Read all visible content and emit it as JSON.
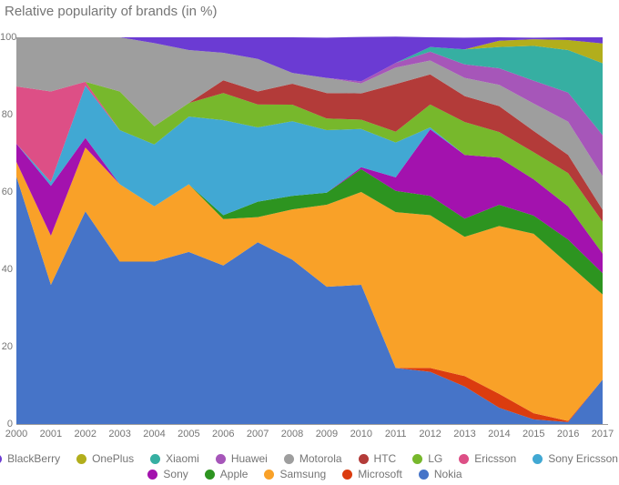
{
  "title": "Relative popularity of brands (in %)",
  "chart_data": {
    "type": "area",
    "stacked": true,
    "percentage": true,
    "title": "Relative popularity of brands (in %)",
    "xlabel": "",
    "ylabel": "",
    "ylim": [
      0,
      100
    ],
    "yticks": [
      0,
      20,
      40,
      60,
      80,
      100
    ],
    "grid": false,
    "legend_position": "bottom",
    "x": [
      2000,
      2001,
      2002,
      2003,
      2004,
      2005,
      2006,
      2007,
      2008,
      2009,
      2010,
      2011,
      2012,
      2013,
      2014,
      2015,
      2016,
      2017
    ],
    "stack_order_bottom_to_top": [
      "Nokia",
      "Microsoft",
      "Samsung",
      "Apple",
      "Sony",
      "Sony Ericsson",
      "Ericsson",
      "LG",
      "HTC",
      "Motorola",
      "Huawei",
      "Xiaomi",
      "OnePlus",
      "BlackBerry"
    ],
    "series": [
      {
        "name": "Nokia",
        "color": "#4674C8",
        "values": [
          64,
          36,
          55,
          42,
          42,
          44.5,
          41,
          47,
          42.5,
          35.5,
          36,
          14.5,
          13.5,
          9.7,
          4.2,
          1.2,
          0.5,
          11.5
        ]
      },
      {
        "name": "Microsoft",
        "color": "#DB3C0F",
        "values": [
          0,
          0,
          0,
          0,
          0,
          0,
          0,
          0,
          0,
          0,
          0,
          0,
          1,
          2.7,
          3.6,
          1.6,
          0.3,
          0
        ]
      },
      {
        "name": "Samsung",
        "color": "#F9A128",
        "values": [
          3.8,
          12.7,
          16.5,
          20,
          14.3,
          17.5,
          12,
          6.5,
          13,
          21.2,
          24,
          40.3,
          39.5,
          36,
          43.4,
          46.4,
          40.6,
          22
        ]
      },
      {
        "name": "Apple",
        "color": "#2D9420",
        "values": [
          0,
          0,
          0,
          0,
          0,
          0,
          1,
          4,
          3.5,
          3.1,
          5.9,
          5.5,
          5,
          4.7,
          5.5,
          4.7,
          6.3,
          5.5
        ]
      },
      {
        "name": "Sony",
        "color": "#A312AE",
        "values": [
          4.7,
          12.9,
          2.5,
          0,
          0,
          0,
          0,
          0,
          0,
          0,
          0.5,
          3.5,
          17.2,
          16.5,
          12.2,
          9.4,
          8.6,
          5.1
        ]
      },
      {
        "name": "Sony Ericsson",
        "color": "#41A8D3",
        "values": [
          0,
          1,
          13.5,
          14,
          16,
          17.5,
          24.6,
          19.2,
          19.3,
          16.2,
          9.9,
          9,
          0.5,
          0,
          0,
          0,
          0,
          0
        ]
      },
      {
        "name": "Ericsson",
        "color": "#DD4F86",
        "values": [
          14.8,
          23.4,
          1,
          0,
          0,
          0,
          0,
          0,
          0,
          0,
          0,
          0,
          0,
          0,
          0,
          0,
          0,
          0
        ]
      },
      {
        "name": "LG",
        "color": "#77B82C",
        "values": [
          0,
          0,
          0,
          10,
          4.7,
          3.5,
          7,
          5.9,
          4.3,
          3,
          2.4,
          2.8,
          5.9,
          8.5,
          6.6,
          7,
          8.6,
          8.2
        ]
      },
      {
        "name": "HTC",
        "color": "#B33B39",
        "values": [
          0,
          0,
          0,
          0,
          0,
          0,
          3.3,
          3.4,
          5.4,
          6.6,
          6.8,
          12.3,
          7.8,
          6.7,
          6.7,
          5.5,
          4.7,
          3.1
        ]
      },
      {
        "name": "Motorola",
        "color": "#9E9E9E",
        "values": [
          12.7,
          14,
          11.5,
          14,
          21.5,
          13.7,
          7.1,
          8.4,
          2.8,
          3.9,
          2.6,
          4.3,
          3.6,
          4.7,
          5.5,
          7.1,
          8.6,
          8.7
        ]
      },
      {
        "name": "Huawei",
        "color": "#A656B9",
        "values": [
          0,
          0,
          0,
          0,
          0,
          0,
          0,
          0,
          0,
          0,
          0.5,
          1.2,
          2.3,
          3.5,
          4.3,
          5.9,
          7.5,
          10.6
        ]
      },
      {
        "name": "Xiaomi",
        "color": "#36AFA2",
        "values": [
          0,
          0,
          0,
          0,
          0,
          0,
          0,
          0,
          0,
          0,
          0,
          0,
          1.2,
          3.9,
          5.5,
          9,
          11,
          18.6
        ]
      },
      {
        "name": "OnePlus",
        "color": "#B2AE1C",
        "values": [
          0,
          0,
          0,
          0,
          0,
          0,
          0,
          0,
          0,
          0,
          0,
          0,
          0,
          0,
          1.6,
          1.7,
          2.6,
          5.1
        ]
      },
      {
        "name": "BlackBerry",
        "color": "#6B3BD3",
        "values": [
          0,
          0,
          0,
          0,
          1.5,
          3.3,
          4,
          5.6,
          9.2,
          10.4,
          11.5,
          6.8,
          2.5,
          3,
          0.9,
          0.4,
          0.7,
          1.6
        ]
      }
    ]
  },
  "axes": {
    "y_tick_labels": [
      "100",
      "80",
      "60",
      "40",
      "20",
      "0"
    ],
    "x_tick_labels": [
      "2000",
      "2001",
      "2002",
      "2003",
      "2004",
      "2005",
      "2006",
      "2007",
      "2008",
      "2009",
      "2010",
      "2011",
      "2012",
      "2013",
      "2014",
      "2015",
      "2016",
      "2017"
    ]
  },
  "legend": {
    "rows": [
      [
        "BlackBerry",
        "OnePlus",
        "Xiaomi",
        "Huawei",
        "Motorola",
        "HTC",
        "LG",
        "Ericsson",
        "Sony Ericsson"
      ],
      [
        "Sony",
        "Apple",
        "Samsung",
        "Microsoft",
        "Nokia"
      ]
    ]
  },
  "colors": {
    "text_gray": "#757575",
    "axis_line": "#9e9e9e"
  }
}
